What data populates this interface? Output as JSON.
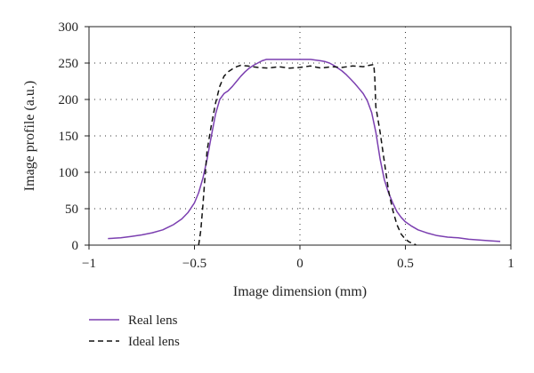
{
  "chart_data": {
    "type": "line",
    "title": "",
    "xlabel": "Image dimension (mm)",
    "ylabel": "Image profile (a.u.)",
    "xlim": [
      -1,
      1
    ],
    "ylim": [
      0,
      300
    ],
    "x_ticks": [
      -1,
      -0.5,
      0,
      0.5,
      1
    ],
    "x_tick_labels": [
      "−1",
      "−0.5",
      "0",
      "0.5",
      "1"
    ],
    "y_ticks": [
      0,
      50,
      100,
      150,
      200,
      250,
      300
    ],
    "y_tick_labels": [
      "0",
      "50",
      "100",
      "150",
      "200",
      "250",
      "300"
    ],
    "grid": "dotted",
    "legend_position": "bottom-left",
    "series": [
      {
        "name": "Real lens",
        "color": "#7b3fb0",
        "style": "solid",
        "x": [
          -0.91,
          -0.85,
          -0.8,
          -0.75,
          -0.7,
          -0.65,
          -0.6,
          -0.56,
          -0.53,
          -0.5,
          -0.48,
          -0.46,
          -0.44,
          -0.42,
          -0.4,
          -0.38,
          -0.36,
          -0.34,
          -0.32,
          -0.3,
          -0.28,
          -0.26,
          -0.24,
          -0.22,
          -0.2,
          -0.18,
          -0.16,
          -0.14,
          -0.1,
          -0.05,
          0,
          0.05,
          0.1,
          0.12,
          0.14,
          0.16,
          0.18,
          0.2,
          0.22,
          0.24,
          0.26,
          0.28,
          0.3,
          0.32,
          0.34,
          0.36,
          0.38,
          0.4,
          0.42,
          0.44,
          0.46,
          0.48,
          0.5,
          0.53,
          0.56,
          0.6,
          0.65,
          0.7,
          0.75,
          0.8,
          0.85,
          0.9,
          0.95
        ],
        "y": [
          9,
          10,
          12,
          14,
          17,
          21,
          28,
          36,
          45,
          58,
          72,
          92,
          118,
          150,
          180,
          200,
          208,
          212,
          218,
          225,
          232,
          238,
          243,
          247,
          250,
          253,
          255,
          255,
          255,
          255,
          255,
          255,
          253,
          252,
          250,
          247,
          243,
          239,
          234,
          228,
          222,
          215,
          208,
          198,
          182,
          155,
          118,
          90,
          72,
          58,
          46,
          38,
          32,
          26,
          21,
          17,
          13,
          11,
          10,
          8,
          7,
          6,
          5
        ]
      },
      {
        "name": "Ideal lens",
        "color": "#111111",
        "style": "dashed",
        "x": [
          -0.48,
          -0.47,
          -0.46,
          -0.45,
          -0.44,
          -0.42,
          -0.4,
          -0.38,
          -0.36,
          -0.34,
          -0.32,
          -0.3,
          -0.28,
          -0.25,
          -0.2,
          -0.15,
          -0.1,
          -0.05,
          0,
          0.05,
          0.1,
          0.15,
          0.2,
          0.25,
          0.3,
          0.33,
          0.35,
          0.355,
          0.36,
          0.38,
          0.4,
          0.42,
          0.44,
          0.46,
          0.48,
          0.5,
          0.52,
          0.54,
          0.55
        ],
        "y": [
          0,
          20,
          55,
          95,
          130,
          165,
          195,
          218,
          232,
          238,
          242,
          245,
          247,
          246,
          244,
          243,
          245,
          243,
          244,
          246,
          243,
          245,
          244,
          246,
          245,
          247,
          248,
          230,
          190,
          155,
          115,
          75,
          48,
          28,
          15,
          8,
          4,
          2,
          0
        ]
      }
    ]
  }
}
